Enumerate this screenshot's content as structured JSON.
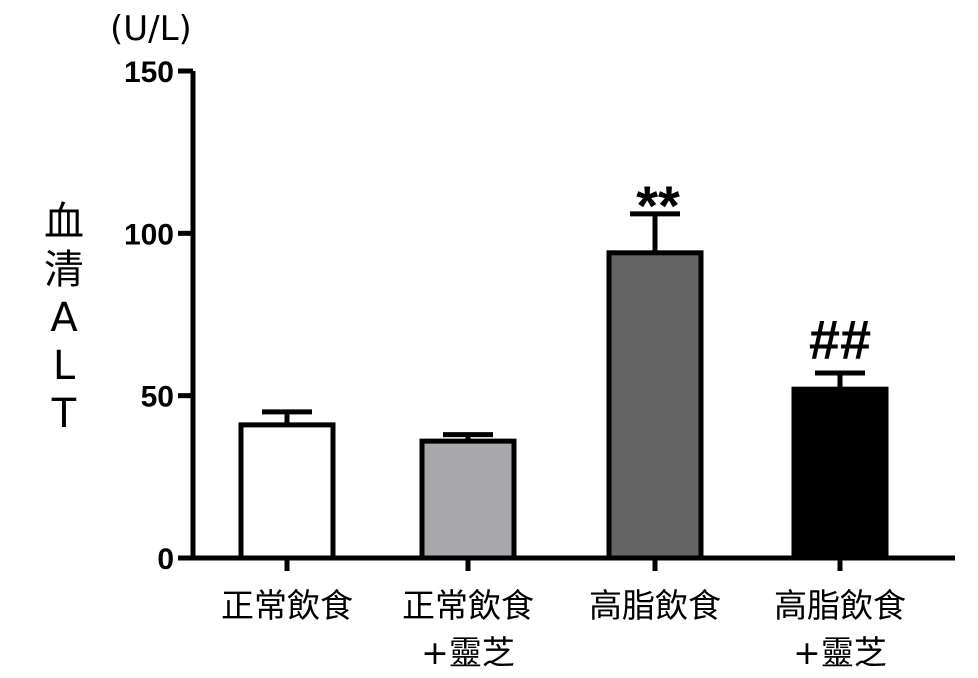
{
  "chart_data": {
    "type": "bar",
    "title": "",
    "unit": "(U/L)",
    "ylabel_chars": [
      "血",
      "清",
      "A",
      "L",
      "T"
    ],
    "xlabel": "",
    "categories": [
      [
        "正常飲食"
      ],
      [
        "正常飲食",
        "+靈芝"
      ],
      [
        "高脂飲食"
      ],
      [
        "高脂飲食",
        "+靈芝"
      ]
    ],
    "values": [
      41,
      36,
      94,
      52
    ],
    "errors": [
      4,
      2,
      12,
      5
    ],
    "annotations": [
      "",
      "",
      "**",
      "##"
    ],
    "colors": [
      "#ffffff",
      "#a9a8ad",
      "#646464",
      "#000000"
    ],
    "ylim": [
      0,
      150
    ],
    "yticks": [
      0,
      50,
      100,
      150
    ]
  }
}
